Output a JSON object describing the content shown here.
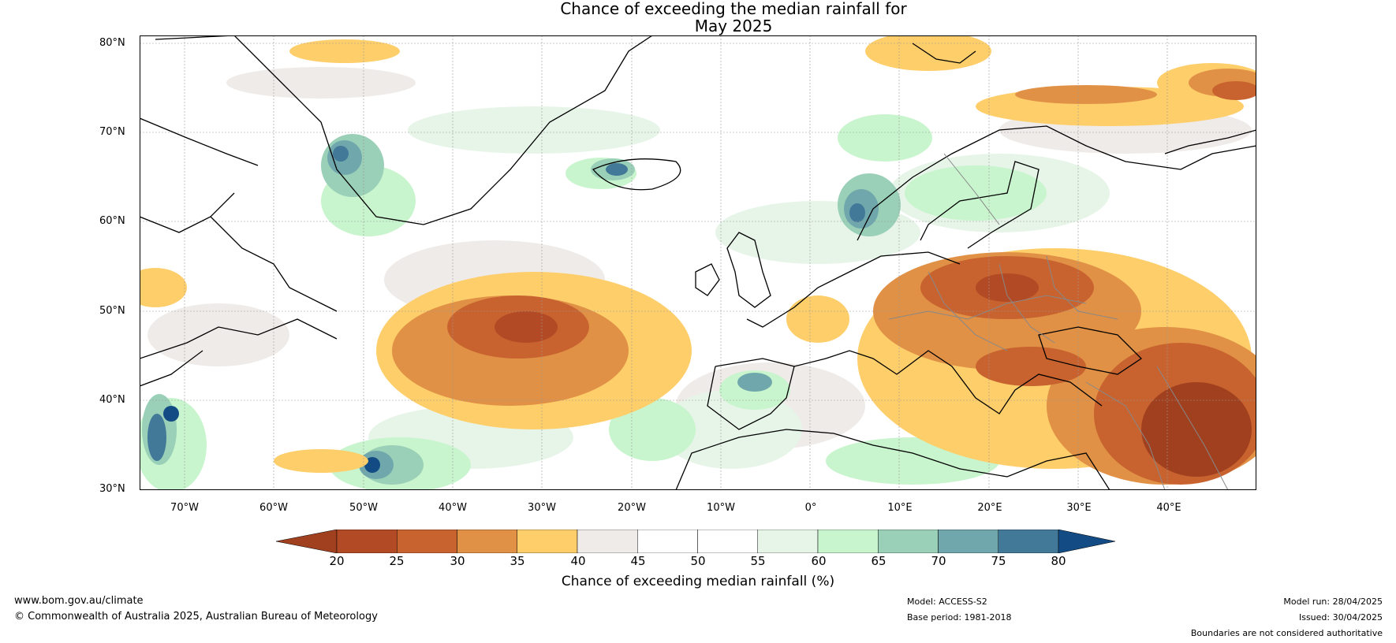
{
  "title": {
    "line1": "Chance of exceeding the median rainfall for",
    "line2": "May 2025"
  },
  "map": {
    "lat_labels": [
      "80°N",
      "70°N",
      "60°N",
      "50°N",
      "40°N",
      "30°N"
    ],
    "lon_labels": [
      "70°W",
      "60°W",
      "50°W",
      "40°W",
      "30°W",
      "20°W",
      "10°W",
      "0°",
      "10°E",
      "20°E",
      "30°E",
      "40°E"
    ],
    "land_features": [
      "Greenland",
      "Iceland",
      "Scandinavia",
      "British Isles",
      "Europe",
      "Canada",
      "Africa",
      "Middle East"
    ]
  },
  "colorbar": {
    "label": "Chance of exceeding median rainfall (%)",
    "ticks": [
      "20",
      "25",
      "30",
      "35",
      "40",
      "45",
      "50",
      "55",
      "60",
      "65",
      "70",
      "75",
      "80"
    ],
    "colors": [
      "#a1401f",
      "#b24a25",
      "#c8632f",
      "#e09146",
      "#fece6a",
      "#efebe8",
      "#ffffff",
      "#ffffff",
      "#e7f5e9",
      "#c8f5cd",
      "#9acfb8",
      "#70a7ac",
      "#427999",
      "#134c84"
    ]
  },
  "footer": {
    "website": "www.bom.gov.au/climate",
    "copyright": "© Commonwealth of Australia 2025, Australian Bureau of Meteorology",
    "model": "Model: ACCESS-S2",
    "base_period": "Base period: 1981-2018",
    "model_run": "Model run: 28/04/2025",
    "issued": "Issued: 30/04/2025",
    "disclaimer": "Boundaries are not considered authoritative"
  }
}
